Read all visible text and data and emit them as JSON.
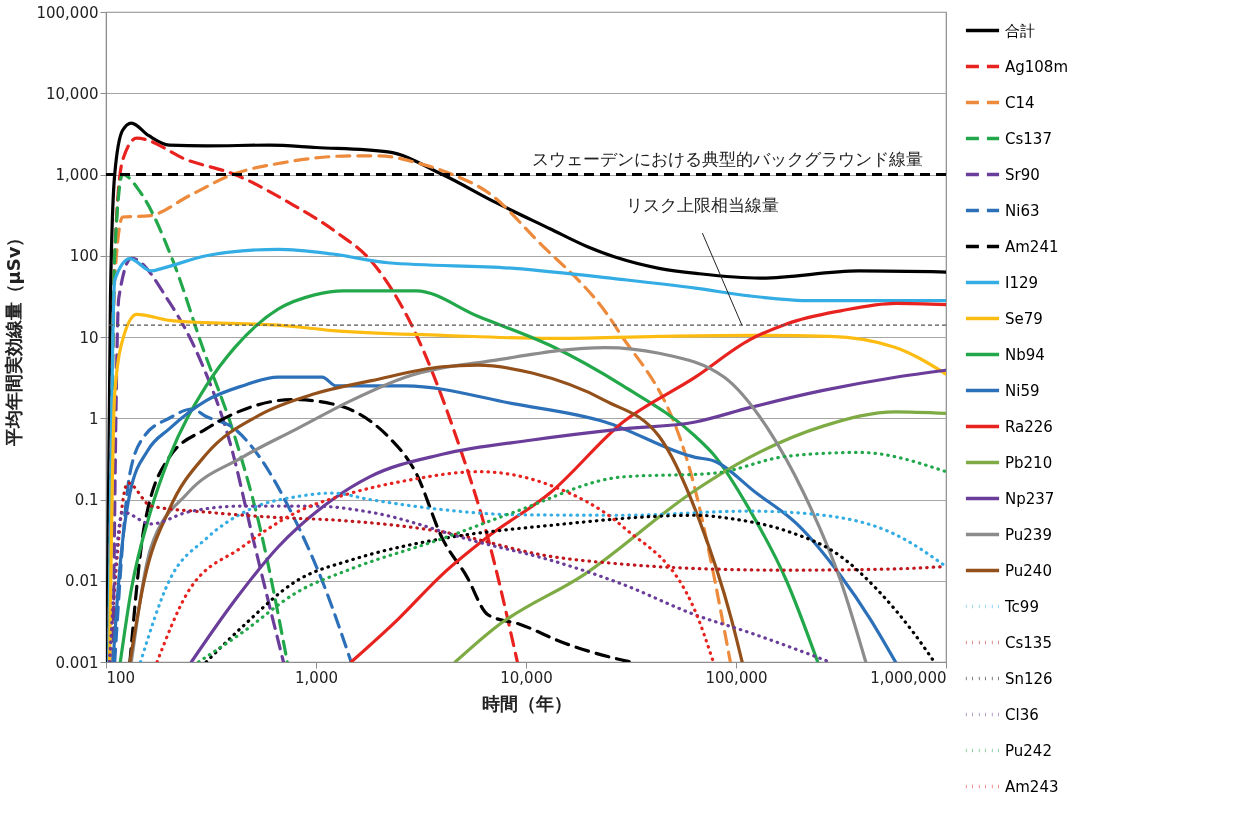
{
  "chart_data": {
    "type": "line",
    "xlabel": "時間（年）",
    "ylabel": "平均年間実効線量（μSv）",
    "log": "xy",
    "xlim": [
      100,
      1000000
    ],
    "ylim": [
      0.001,
      100000
    ],
    "xticks": [
      100,
      {
        "value": 1000,
        "label": "1,000"
      },
      {
        "value": 10000,
        "label": "10,000"
      },
      {
        "value": 100000,
        "label": "100,000"
      },
      {
        "value": 1000000,
        "label": "1,000,000"
      }
    ],
    "yticks": [
      0.001,
      0.01,
      0.1,
      1,
      10,
      100,
      {
        "value": 1000,
        "label": "1,000"
      },
      {
        "value": 10000,
        "label": "10,000"
      },
      {
        "value": 100000,
        "label": "100,000"
      }
    ],
    "grid": "y",
    "legend": "right",
    "ref_lines": [
      {
        "axis": "y",
        "value": 1000,
        "label": "スウェーデンにおける典型的バックグラウンド線量",
        "color": "#000000",
        "line_style": "dashed"
      },
      {
        "axis": "y",
        "value": 14,
        "label": "リスク上限相当線量",
        "color": "#555555",
        "line_style": "dashed"
      }
    ],
    "series": [
      {
        "name": "合計",
        "color": "#000000",
        "line_style": "solid",
        "x": [
          101,
          105,
          110,
          120,
          132,
          160,
          200,
          300,
          600,
          1000,
          2200,
          4000,
          7200,
          13000,
          19500,
          27000,
          43000,
          67000,
          130000,
          385000,
          1000000
        ],
        "values": [
          0.001,
          30,
          1000,
          3500,
          4300,
          3000,
          2300,
          2250,
          2300,
          2150,
          1900,
          1000,
          450,
          215,
          130,
          95,
          70,
          60,
          53,
          65,
          63
        ]
      },
      {
        "name": "Ag108m",
        "color": "#e8231f",
        "line_style": "dashed",
        "x": [
          103,
          110,
          120,
          140,
          245,
          410,
          745,
          1250,
          1840,
          3000,
          4640,
          6600,
          9100
        ],
        "values": [
          0.001,
          100,
          1500,
          2800,
          1500,
          1000,
          450,
          195,
          85,
          10.7,
          0.6,
          0.033,
          0.001
        ]
      },
      {
        "name": "C14",
        "color": "#ed8a3c",
        "line_style": "dashed",
        "x": [
          104,
          110,
          120,
          160,
          250,
          400,
          700,
          1000,
          1500,
          2000,
          3000,
          4460,
          6600,
          11200,
          26900,
          64000,
          94000
        ],
        "values": [
          0.001,
          50,
          300,
          310,
          550,
          1000,
          1400,
          1600,
          1700,
          1700,
          1400,
          1000,
          600,
          158,
          13,
          0.13,
          0.001
        ]
      },
      {
        "name": "Cs137",
        "color": "#22a84a",
        "line_style": "dashed",
        "x": [
          104,
          110,
          120,
          146,
          209,
          286,
          410,
          540,
          730
        ],
        "values": [
          0.001,
          100,
          1000,
          600,
          85,
          7.9,
          0.6,
          0.046,
          0.001
        ]
      },
      {
        "name": "Sr90",
        "color": "#6a3d9a",
        "line_style": "dashed",
        "x": [
          108,
          115,
          132,
          200,
          276,
          395,
          500,
          700
        ],
        "values": [
          0.001,
          30,
          93,
          27,
          5.8,
          0.44,
          0.034,
          0.001
        ]
      },
      {
        "name": "Ni63",
        "color": "#2b70b8",
        "line_style": "dashed",
        "x": [
          110,
          130,
          152,
          200,
          257,
          300,
          410,
          540,
          775,
          1070,
          1470
        ],
        "values": [
          0.001,
          0.21,
          0.6,
          1.0,
          1.3,
          1.05,
          0.74,
          0.33,
          0.064,
          0.01,
          0.001
        ]
      },
      {
        "name": "Am241",
        "color": "#000000",
        "line_style": "dashed",
        "x": [
          130,
          152,
          200,
          300,
          480,
          775,
          1200,
          1840,
          2200,
          3000,
          4000,
          5200,
          6600,
          9400,
          15300,
          26900,
          31600
        ],
        "values": [
          0.001,
          0.046,
          0.33,
          0.74,
          1.35,
          1.7,
          1.5,
          0.9,
          0.6,
          0.21,
          0.033,
          0.0115,
          0.0038,
          0.0029,
          0.0017,
          0.0011,
          0.001
        ]
      },
      {
        "name": "I129",
        "color": "#34ade4",
        "line_style": "solid",
        "x": [
          103,
          110,
          130,
          164,
          185,
          300,
          445,
          660,
          1200,
          2200,
          8800,
          26900,
          64000,
          116000,
          230000,
          1000000
        ],
        "values": [
          0.001,
          50,
          92,
          65,
          70,
          100,
          115,
          120,
          105,
          82,
          70,
          52,
          40,
          32,
          28,
          28
        ]
      },
      {
        "name": "Se79",
        "color": "#fdbc12",
        "line_style": "solid",
        "x": [
          104,
          110,
          122,
          140,
          200,
          300,
          660,
          1200,
          4000,
          13000,
          43000,
          116000,
          280000,
          570000,
          1000000
        ],
        "values": [
          0.001,
          2,
          10.7,
          19,
          16,
          15,
          14,
          12,
          10.5,
          9.6,
          10.2,
          10.5,
          10.2,
          7.5,
          3.5
        ]
      },
      {
        "name": "Nb94",
        "color": "#22a84a",
        "line_style": "solid",
        "x": [
          117,
          132,
          164,
          200,
          300,
          410,
          660,
          985,
          1350,
          3000,
          5900,
          13000,
          29000,
          64000,
          78000,
          116000,
          174000,
          245000
        ],
        "values": [
          0.001,
          0.0078,
          0.075,
          0.33,
          2.5,
          7.4,
          22,
          33,
          37,
          37,
          18,
          7.9,
          2.5,
          0.6,
          0.36,
          0.075,
          0.01,
          0.001
        ]
      },
      {
        "name": "Ni59",
        "color": "#2b70b8",
        "line_style": "solid",
        "x": [
          108,
          115,
          130,
          158,
          200,
          300,
          445,
          660,
          1070,
          1250,
          2660,
          8800,
          23800,
          64000,
          78000,
          125000,
          195000,
          315000,
          435000,
          575000
        ],
        "values": [
          0.001,
          0.01,
          0.12,
          0.4,
          0.74,
          1.65,
          2.5,
          3.2,
          3.2,
          2.5,
          2.5,
          1.5,
          0.9,
          0.33,
          0.3,
          0.12,
          0.05,
          0.0115,
          0.0034,
          0.001
        ]
      },
      {
        "name": "Ra226",
        "color": "#e8231f",
        "line_style": "solid",
        "x": [
          1470,
          2470,
          4000,
          6600,
          13000,
          29000,
          64000,
          116000,
          174000,
          315000,
          575000,
          1000000
        ],
        "values": [
          0.001,
          0.0034,
          0.012,
          0.035,
          0.12,
          0.9,
          3.2,
          9.2,
          14.5,
          21,
          26,
          25
        ]
      },
      {
        "name": "Pb210",
        "color": "#7fab45",
        "line_style": "solid",
        "x": [
          4600,
          7200,
          19000,
          64000,
          116000,
          260000,
          575000,
          1000000
        ],
        "values": [
          0.001,
          0.0027,
          0.012,
          0.13,
          0.33,
          0.8,
          1.2,
          1.15
        ]
      },
      {
        "name": "Np237",
        "color": "#6a3d9a",
        "line_style": "solid",
        "x": [
          255,
          410,
          660,
          1200,
          1800,
          4000,
          10700,
          29000,
          64000,
          116000,
          260000,
          575000,
          1000000
        ],
        "values": [
          0.001,
          0.0057,
          0.026,
          0.1,
          0.19,
          0.36,
          0.54,
          0.74,
          0.9,
          1.35,
          2.2,
          3.2,
          3.9
        ]
      },
      {
        "name": "Pu239",
        "color": "#8c8c8c",
        "line_style": "solid",
        "x": [
          132,
          164,
          245,
          445,
          810,
          1470,
          2660,
          7200,
          23800,
          43000,
          88000,
          142000,
          210000,
          315000,
          415000
        ],
        "values": [
          0.001,
          0.026,
          0.12,
          0.33,
          0.74,
          1.65,
          3.2,
          5.2,
          7.4,
          6.3,
          3.2,
          0.74,
          0.12,
          0.01,
          0.001
        ]
      },
      {
        "name": "Pu240",
        "color": "#94501a",
        "line_style": "solid",
        "x": [
          130,
          152,
          200,
          300,
          540,
          985,
          1840,
          4000,
          5900,
          10700,
          23800,
          43000,
          67000,
          95000,
          107000
        ],
        "values": [
          0.001,
          0.01,
          0.075,
          0.36,
          1.1,
          2.0,
          2.9,
          4.3,
          4.5,
          3.6,
          1.65,
          0.6,
          0.055,
          0.0034,
          0.001
        ]
      },
      {
        "name": "Tc99",
        "color": "#34ade4",
        "line_style": "dotted",
        "x": [
          146,
          200,
          300,
          480,
          840,
          1200,
          1800,
          4000,
          8800,
          29000,
          116000,
          260000,
          575000,
          1000000
        ],
        "values": [
          0.001,
          0.01,
          0.033,
          0.075,
          0.11,
          0.12,
          0.1,
          0.075,
          0.065,
          0.064,
          0.072,
          0.064,
          0.037,
          0.015
        ]
      },
      {
        "name": "Cs135",
        "color": "#c0171c",
        "line_style": "dotted",
        "x": [
          104,
          127,
          164,
          300,
          660,
          1200,
          4000,
          13000,
          29000,
          52000,
          174000,
          575000,
          1000000
        ],
        "values": [
          0.001,
          0.16,
          0.083,
          0.07,
          0.06,
          0.056,
          0.04,
          0.02,
          0.016,
          0.0145,
          0.0135,
          0.014,
          0.015
        ]
      },
      {
        "name": "Sn126",
        "color": "#000000",
        "line_style": "dotted",
        "x": [
          300,
          445,
          810,
          1470,
          1800,
          4000,
          13000,
          64000,
          95000,
          174000,
          315000,
          470000,
          700000,
          880000
        ],
        "values": [
          0.001,
          0.0027,
          0.01,
          0.018,
          0.021,
          0.033,
          0.048,
          0.064,
          0.058,
          0.041,
          0.02,
          0.0078,
          0.0023,
          0.001
        ]
      },
      {
        "name": "Cl36",
        "color": "#6a3d9a",
        "line_style": "dotted",
        "x": [
          104,
          120,
          164,
          245,
          445,
          985,
          1800,
          5900,
          13000,
          29000,
          64000,
          116000,
          280000
        ],
        "values": [
          0.001,
          0.07,
          0.05,
          0.07,
          0.083,
          0.083,
          0.07,
          0.03,
          0.018,
          0.009,
          0.0038,
          0.0023,
          0.001
        ]
      },
      {
        "name": "Pu242",
        "color": "#22a84a",
        "line_style": "dotted",
        "x": [
          276,
          445,
          810,
          1470,
          4000,
          8800,
          29000,
          78000,
          174000,
          385000,
          1000000
        ],
        "values": [
          0.001,
          0.0023,
          0.0072,
          0.014,
          0.033,
          0.07,
          0.19,
          0.21,
          0.34,
          0.38,
          0.22
        ]
      },
      {
        "name": "Am243",
        "color": "#e8231f",
        "line_style": "dotted",
        "x": [
          175,
          245,
          445,
          810,
          1470,
          2660,
          6000,
          13000,
          29000,
          64000,
          78000
        ],
        "values": [
          0.001,
          0.0072,
          0.026,
          0.07,
          0.12,
          0.17,
          0.22,
          0.15,
          0.046,
          0.0042,
          0.001
        ]
      }
    ]
  }
}
